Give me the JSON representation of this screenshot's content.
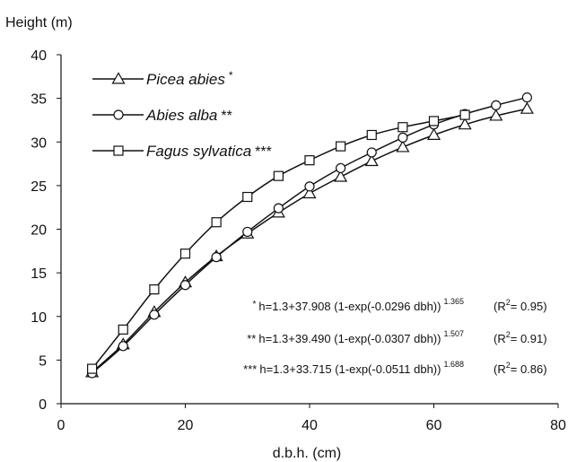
{
  "chart_data": {
    "type": "line",
    "ylabel": "Height (m)",
    "xlabel": "d.b.h. (cm)",
    "xlim": [
      0,
      80
    ],
    "ylim": [
      0,
      40
    ],
    "xticks": [
      "0",
      "20",
      "40",
      "60",
      "80"
    ],
    "yticks": [
      "0",
      "5",
      "10",
      "15",
      "20",
      "25",
      "30",
      "35",
      "40"
    ],
    "grid": false,
    "legend_position": "top-left",
    "series": [
      {
        "name": "Picea abies",
        "stars": "*",
        "marker": "triangle",
        "x": [
          5,
          10,
          15,
          20,
          25,
          30,
          35,
          40,
          45,
          50,
          55,
          60,
          65,
          70,
          75
        ],
        "y": [
          3.6,
          6.8,
          10.5,
          13.9,
          16.9,
          19.5,
          21.9,
          24.1,
          26.0,
          27.8,
          29.4,
          30.8,
          32.0,
          33.0,
          33.8
        ]
      },
      {
        "name": "Abies alba",
        "stars": "**",
        "marker": "circle",
        "x": [
          5,
          10,
          15,
          20,
          25,
          30,
          35,
          40,
          45,
          50,
          55,
          60,
          65,
          70,
          75
        ],
        "y": [
          3.5,
          6.6,
          10.2,
          13.6,
          16.8,
          19.7,
          22.4,
          24.9,
          27.0,
          28.8,
          30.5,
          32.0,
          33.2,
          34.2,
          35.1
        ]
      },
      {
        "name": "Fagus sylvatica",
        "stars": "***",
        "marker": "square",
        "x": [
          5,
          10,
          15,
          20,
          25,
          30,
          35,
          40,
          45,
          50,
          55,
          60,
          65
        ],
        "y": [
          4.0,
          8.5,
          13.1,
          17.2,
          20.8,
          23.7,
          26.1,
          27.9,
          29.5,
          30.8,
          31.7,
          32.4,
          33.1
        ]
      }
    ],
    "equations": [
      {
        "stars": "*",
        "prefix": "h=1.3+37.908 (1-exp(-0.0296 dbh))",
        "exponent": "1.365",
        "r2_label": "(R",
        "r2_sup": "2",
        "r2_value": "= 0.95)"
      },
      {
        "stars": "**",
        "prefix": "h=1.3+39.490 (1-exp(-0.0307 dbh))",
        "exponent": "1.507",
        "r2_label": "(R",
        "r2_sup": "2",
        "r2_value": "= 0.91)"
      },
      {
        "stars": "***",
        "prefix": "h=1.3+33.715 (1-exp(-0.0511 dbh))",
        "exponent": "1.688",
        "r2_label": "(R",
        "r2_sup": "2",
        "r2_value": "= 0.86)"
      }
    ]
  }
}
